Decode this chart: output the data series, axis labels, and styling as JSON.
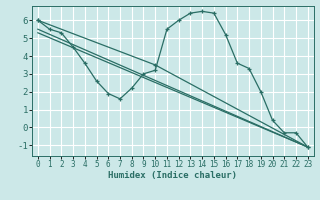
{
  "xlabel": "Humidex (Indice chaleur)",
  "ylabel": "",
  "bg_color": "#cce8e8",
  "grid_color": "#ffffff",
  "line_color": "#2a6e65",
  "xlim": [
    -0.5,
    23.5
  ],
  "ylim": [
    -1.6,
    6.8
  ],
  "xticks": [
    0,
    1,
    2,
    3,
    4,
    5,
    6,
    7,
    8,
    9,
    10,
    11,
    12,
    13,
    14,
    15,
    16,
    17,
    18,
    19,
    20,
    21,
    22,
    23
  ],
  "yticks": [
    -1,
    0,
    1,
    2,
    3,
    4,
    5,
    6
  ],
  "line1": {
    "x": [
      0,
      1,
      2,
      3,
      4,
      5,
      6,
      7,
      8,
      9,
      10,
      11,
      12,
      13,
      14,
      15,
      16,
      17,
      18,
      19,
      20,
      21,
      22,
      23
    ],
    "y": [
      6.0,
      5.5,
      5.3,
      4.5,
      3.6,
      2.6,
      1.9,
      1.6,
      2.2,
      3.0,
      3.2,
      5.5,
      6.0,
      6.4,
      6.5,
      6.4,
      5.2,
      3.6,
      3.3,
      2.0,
      0.4,
      -0.3,
      -0.3,
      -1.1
    ]
  },
  "line2": {
    "x": [
      0,
      10,
      23
    ],
    "y": [
      6.0,
      3.5,
      -1.1
    ]
  },
  "line3": {
    "x": [
      0,
      23
    ],
    "y": [
      5.5,
      -1.1
    ]
  },
  "line4": {
    "x": [
      0,
      23
    ],
    "y": [
      5.3,
      -1.1
    ]
  }
}
